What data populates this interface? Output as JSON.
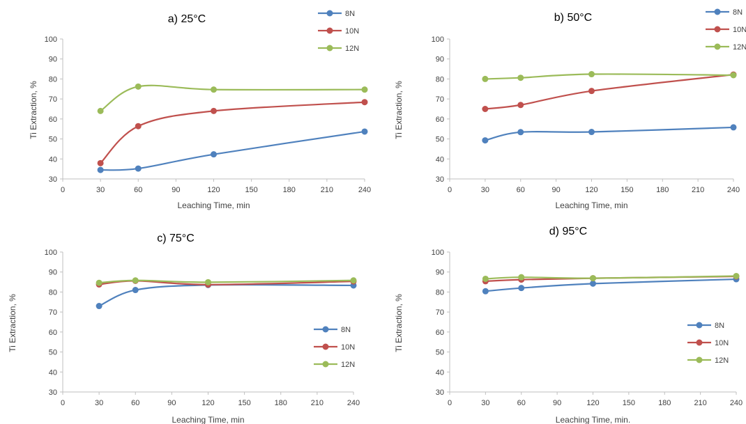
{
  "colors": {
    "8N": "#4F81BD",
    "10N": "#C0504D",
    "12N": "#9BBB59"
  },
  "chart_data": [
    {
      "type": "line",
      "title": "a) 25°C",
      "xlabel": "Leaching Time, min",
      "ylabel": "Ti Extraction, %",
      "xlim": [
        0,
        240
      ],
      "ylim": [
        30,
        100
      ],
      "xticks": [
        "0",
        "30",
        "60",
        "90",
        "120",
        "150",
        "180",
        "210",
        "240"
      ],
      "yticks": [
        "30",
        "40",
        "50",
        "60",
        "70",
        "80",
        "90",
        "100"
      ],
      "x": [
        30,
        60,
        120,
        240
      ],
      "legend_position": "top-right",
      "grid": false,
      "series": [
        {
          "name": "8N",
          "color": "#4F81BD",
          "values": [
            34.5,
            35.2,
            42.3,
            53.7
          ]
        },
        {
          "name": "10N",
          "color": "#C0504D",
          "values": [
            37.9,
            56.4,
            64.0,
            68.4
          ]
        },
        {
          "name": "12N",
          "color": "#9BBB59",
          "values": [
            64.0,
            76.2,
            74.7,
            74.7
          ]
        }
      ]
    },
    {
      "type": "line",
      "title": "b) 50°C",
      "xlabel": "Leaching Time, min",
      "ylabel": "Ti Extraction, %",
      "xlim": [
        0,
        240
      ],
      "ylim": [
        30,
        100
      ],
      "xticks": [
        "0",
        "30",
        "60",
        "90",
        "120",
        "150",
        "180",
        "210",
        "240"
      ],
      "yticks": [
        "30",
        "40",
        "50",
        "60",
        "70",
        "80",
        "90",
        "100"
      ],
      "x": [
        30,
        60,
        120,
        240
      ],
      "legend_position": "top-right",
      "grid": false,
      "series": [
        {
          "name": "8N",
          "color": "#4F81BD",
          "values": [
            49.3,
            53.4,
            53.5,
            55.8
          ]
        },
        {
          "name": "10N",
          "color": "#C0504D",
          "values": [
            65.0,
            67.0,
            74.0,
            82.2
          ]
        },
        {
          "name": "12N",
          "color": "#9BBB59",
          "values": [
            80.0,
            80.6,
            82.4,
            81.9
          ]
        }
      ]
    },
    {
      "type": "line",
      "title": "c) 75°C",
      "xlabel": "Leaching Time, min",
      "ylabel": "Ti Extraction, %",
      "xlim": [
        0,
        240
      ],
      "ylim": [
        30,
        100
      ],
      "xticks": [
        "0",
        "30",
        "60",
        "90",
        "120",
        "150",
        "180",
        "210",
        "240"
      ],
      "yticks": [
        "30",
        "40",
        "50",
        "60",
        "70",
        "80",
        "90",
        "100"
      ],
      "x": [
        30,
        60,
        120,
        240
      ],
      "legend_position": "right",
      "grid": false,
      "series": [
        {
          "name": "8N",
          "color": "#4F81BD",
          "values": [
            73.0,
            81.0,
            83.5,
            83.3
          ]
        },
        {
          "name": "10N",
          "color": "#C0504D",
          "values": [
            83.8,
            85.6,
            83.7,
            85.3
          ]
        },
        {
          "name": "12N",
          "color": "#9BBB59",
          "values": [
            84.6,
            85.8,
            84.9,
            85.8
          ]
        }
      ]
    },
    {
      "type": "line",
      "title": "d) 95°C",
      "xlabel": "Leaching Time, min.",
      "ylabel": "Ti Extraction, %",
      "xlim": [
        0,
        240
      ],
      "ylim": [
        30,
        100
      ],
      "xticks": [
        "0",
        "30",
        "60",
        "90",
        "120",
        "150",
        "180",
        "210",
        "240"
      ],
      "yticks": [
        "30",
        "40",
        "50",
        "60",
        "70",
        "80",
        "90",
        "100"
      ],
      "x": [
        30,
        60,
        120,
        240
      ],
      "legend_position": "right",
      "grid": false,
      "series": [
        {
          "name": "8N",
          "color": "#4F81BD",
          "values": [
            80.4,
            82.0,
            84.2,
            86.4
          ]
        },
        {
          "name": "10N",
          "color": "#C0504D",
          "values": [
            85.4,
            86.2,
            86.9,
            87.8
          ]
        },
        {
          "name": "12N",
          "color": "#9BBB59",
          "values": [
            86.6,
            87.4,
            86.9,
            88.0
          ]
        }
      ]
    }
  ]
}
